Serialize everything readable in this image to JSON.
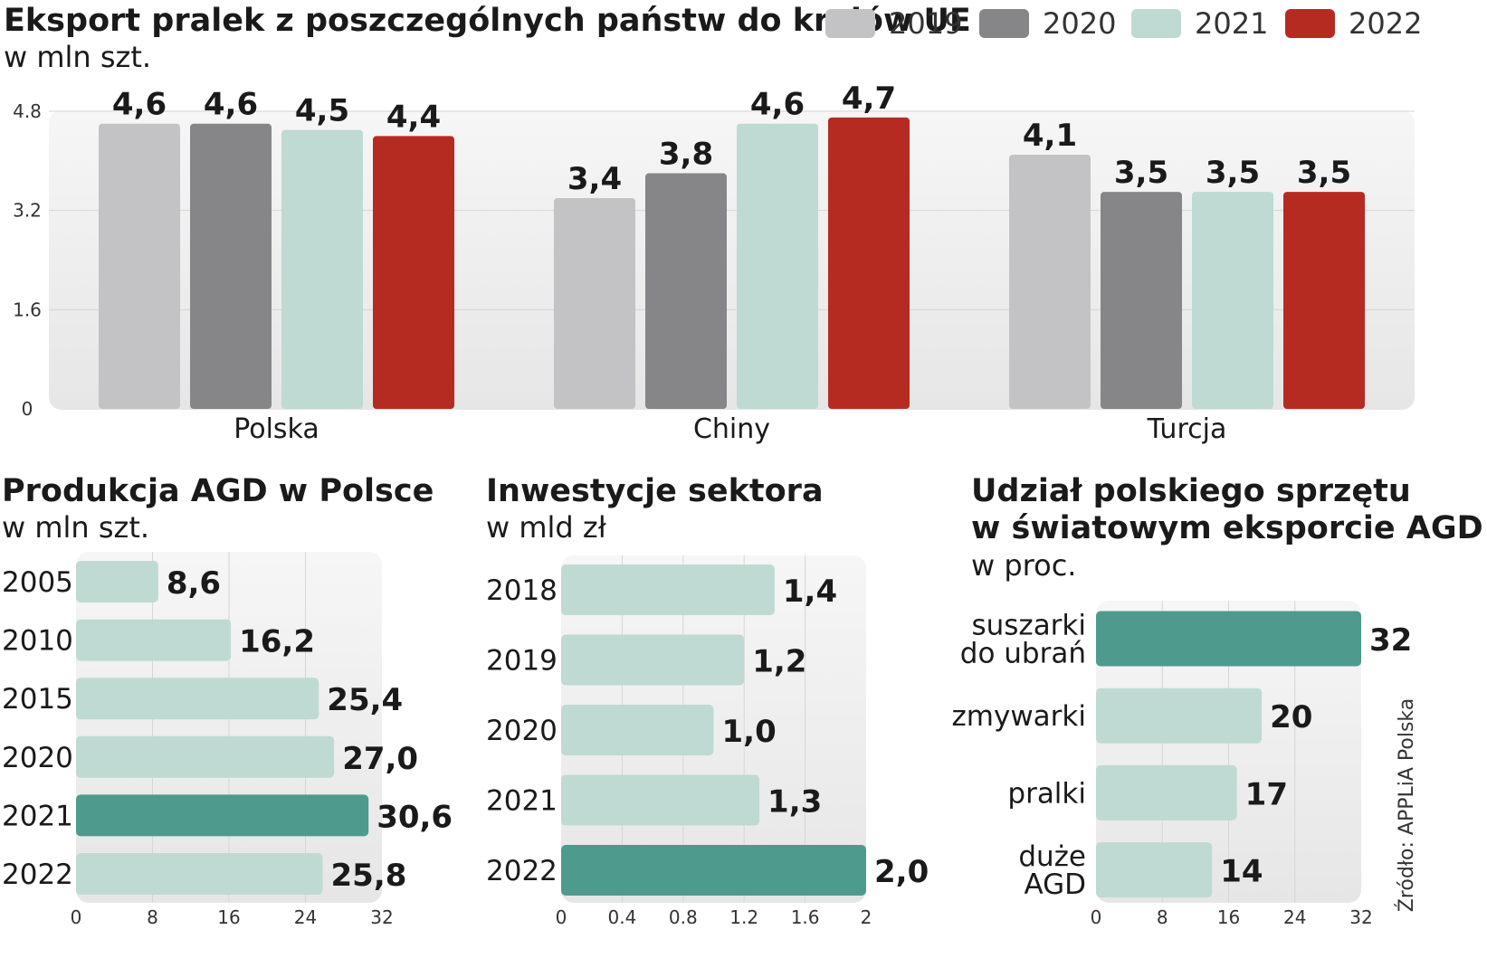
{
  "source": "Źródło: APPLiA Polska",
  "chart_data": [
    {
      "type": "bar",
      "title": "Eksport pralek z poszczególnych państw do krajów UE",
      "subtitle": "w mln szt.",
      "categories": [
        "Polska",
        "Chiny",
        "Turcja"
      ],
      "series": [
        {
          "name": "2019",
          "color": "#c3c3c5",
          "values": [
            4.6,
            3.4,
            4.1
          ],
          "labels": [
            "4,6",
            "3,4",
            "4,1"
          ]
        },
        {
          "name": "2020",
          "color": "#868688",
          "values": [
            4.6,
            3.8,
            3.5
          ],
          "labels": [
            "4,6",
            "3,8",
            "3,5"
          ]
        },
        {
          "name": "2021",
          "color": "#bfdad2",
          "values": [
            4.5,
            4.6,
            3.5
          ],
          "labels": [
            "4,5",
            "4,6",
            "3,5"
          ]
        },
        {
          "name": "2022",
          "color": "#b52b22",
          "values": [
            4.4,
            4.7,
            3.5
          ],
          "labels": [
            "4,4",
            "4,7",
            "3,5"
          ]
        }
      ],
      "ylim": [
        0,
        4.8
      ],
      "yticks": [
        "0",
        "1.6",
        "3.2",
        "4.8"
      ],
      "ytick_values": [
        0,
        1.6,
        3.2,
        4.8
      ],
      "legend_position": "top-right",
      "grid": true
    },
    {
      "type": "bar",
      "orientation": "horizontal",
      "title": "Produkcja AGD w Polsce",
      "subtitle": "w mln szt.",
      "categories": [
        "2005",
        "2010",
        "2015",
        "2020",
        "2021",
        "2022"
      ],
      "values": [
        8.6,
        16.2,
        25.4,
        27.0,
        30.6,
        25.8
      ],
      "labels": [
        "8,6",
        "16,2",
        "25,4",
        "27,0",
        "30,6",
        "25,8"
      ],
      "highlight_index": 4,
      "xlim": [
        0,
        32
      ],
      "xticks": [
        "0",
        "8",
        "16",
        "24",
        "32"
      ],
      "xtick_values": [
        0,
        8,
        16,
        24,
        32
      ]
    },
    {
      "type": "bar",
      "orientation": "horizontal",
      "title": "Inwestycje sektora",
      "subtitle": "w mld zł",
      "categories": [
        "2018",
        "2019",
        "2020",
        "2021",
        "2022"
      ],
      "values": [
        1.4,
        1.2,
        1.0,
        1.3,
        2.0
      ],
      "labels": [
        "1,4",
        "1,2",
        "1,0",
        "1,3",
        "2,0"
      ],
      "highlight_index": 4,
      "xlim": [
        0,
        2
      ],
      "xticks": [
        "0",
        "0.4",
        "0.8",
        "1.2",
        "1.6",
        "2"
      ],
      "xtick_values": [
        0,
        0.4,
        0.8,
        1.2,
        1.6,
        2
      ]
    },
    {
      "type": "bar",
      "orientation": "horizontal",
      "title_lines": [
        "Udział polskiego sprzętu",
        "w światowym eksporcie AGD"
      ],
      "subtitle": "w proc.",
      "categories": [
        [
          "suszarki",
          "do ubrań"
        ],
        [
          "zmywarki"
        ],
        [
          "pralki"
        ],
        [
          "duże",
          "AGD"
        ]
      ],
      "values": [
        32,
        20,
        17,
        14
      ],
      "labels": [
        "32",
        "20",
        "17",
        "14"
      ],
      "highlight_index": 0,
      "xlim": [
        0,
        32
      ],
      "xticks": [
        "0",
        "8",
        "16",
        "24",
        "32"
      ],
      "xtick_values": [
        0,
        8,
        16,
        24,
        32
      ]
    }
  ],
  "colors": {
    "panel_bg": "#ececec",
    "grid": "#d6d6d6",
    "bar_light": "#bfdad2",
    "bar_highlight": "#4e9b8e"
  }
}
